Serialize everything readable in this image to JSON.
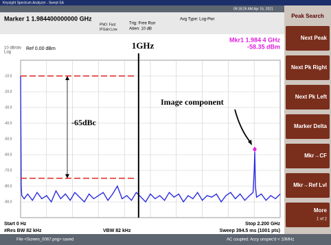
{
  "window": {
    "title": "Keysight Spectrum Analyzer - Swept SA"
  },
  "status": {
    "trigger": "Trig: Free Run",
    "atten": "Atten: 10 dB",
    "pno": "PNO: Fast",
    "ifgain": "IFGain:Low",
    "avg_type": "Avg Type: Log-Pwr",
    "time": "09:18:26 AM Apr 15, 2021"
  },
  "header": {
    "marker": "Marker 1 1.984400000000 GHz"
  },
  "plot": {
    "scale": "10 dB/div",
    "scale_type": "Log",
    "ref": "Ref 0.00 dBm",
    "marker_freq": "Mkr1 1.984 4 GHz",
    "marker_level": "-58.35 dBm",
    "marker_x": 1.9844,
    "marker_y": -58.35,
    "xlim": [
      0,
      2.2
    ],
    "ylim": [
      -100,
      0
    ],
    "yticks": [
      {
        "value": -10,
        "label": "-10.0"
      },
      {
        "value": -20,
        "label": "-20.0"
      },
      {
        "value": -30,
        "label": "-30.0"
      },
      {
        "value": -40,
        "label": "-40.0"
      },
      {
        "value": -50,
        "label": "-50.0"
      },
      {
        "value": -60,
        "label": "-60.0"
      },
      {
        "value": -70,
        "label": "-70.0"
      },
      {
        "value": -80,
        "label": "-80.0"
      },
      {
        "value": -90,
        "label": "-90.0"
      }
    ],
    "trace_color": "#2a2ae0",
    "trace_x": [
      0,
      0.005,
      0.01,
      0.03,
      0.06,
      0.1,
      0.14,
      0.18,
      0.22,
      0.26,
      0.3,
      0.34,
      0.38,
      0.42,
      0.46,
      0.5,
      0.54,
      0.58,
      0.62,
      0.66,
      0.7,
      0.74,
      0.78,
      0.82,
      0.86,
      0.9,
      0.94,
      0.98,
      1.02,
      1.06,
      1.1,
      1.14,
      1.18,
      1.22,
      1.26,
      1.3,
      1.34,
      1.38,
      1.42,
      1.46,
      1.5,
      1.54,
      1.58,
      1.62,
      1.66,
      1.7,
      1.74,
      1.78,
      1.82,
      1.86,
      1.9,
      1.94,
      1.97,
      1.98,
      1.9844,
      1.99,
      2.0,
      2.04,
      2.08,
      2.12,
      2.16,
      2.2
    ],
    "trace_values": [
      -10,
      -80,
      -86,
      -88,
      -85,
      -89,
      -84,
      -88,
      -86,
      -90,
      -83,
      -88,
      -85,
      -89,
      -84,
      -87,
      -90,
      -85,
      -88,
      -86,
      -84,
      -89,
      -85,
      -80,
      -88,
      -86,
      -89,
      -84,
      -87,
      -90,
      -85,
      -88,
      -86,
      -89,
      -84,
      -87,
      -85,
      -90,
      -86,
      -88,
      -84,
      -89,
      -86,
      -87,
      -85,
      -90,
      -86,
      -84,
      -88,
      -85,
      -89,
      -86,
      -84,
      -70,
      -58.35,
      -80,
      -87,
      -85,
      -89,
      -86,
      -88,
      -85
    ],
    "freq_line": {
      "value": 1,
      "label": "1GHz"
    },
    "levels": [
      -10,
      -75
    ],
    "dbc_label": "-65dBc",
    "image_label": "Image component",
    "start": "Start 0 Hz",
    "rbw": "#Res BW 82 kHz",
    "vbw": "VBW 82 kHz",
    "stop": "Stop 2.200 GHz",
    "sweep": "Sweep 394.5 ms (1001 pts)"
  },
  "softkeys": {
    "title": "Peak Search",
    "keys": [
      "Next Peak",
      "Next Pk Right",
      "Next Pk Left",
      "Marker Delta",
      "Mkr→CF",
      "Mkr→Ref Lvl"
    ],
    "more": "More",
    "more_page": "1 of 2"
  },
  "footer": {
    "file": "File <Screen_0067.png> saved",
    "coupling": "AC coupled: Accy unspec'd < 10MHz"
  }
}
